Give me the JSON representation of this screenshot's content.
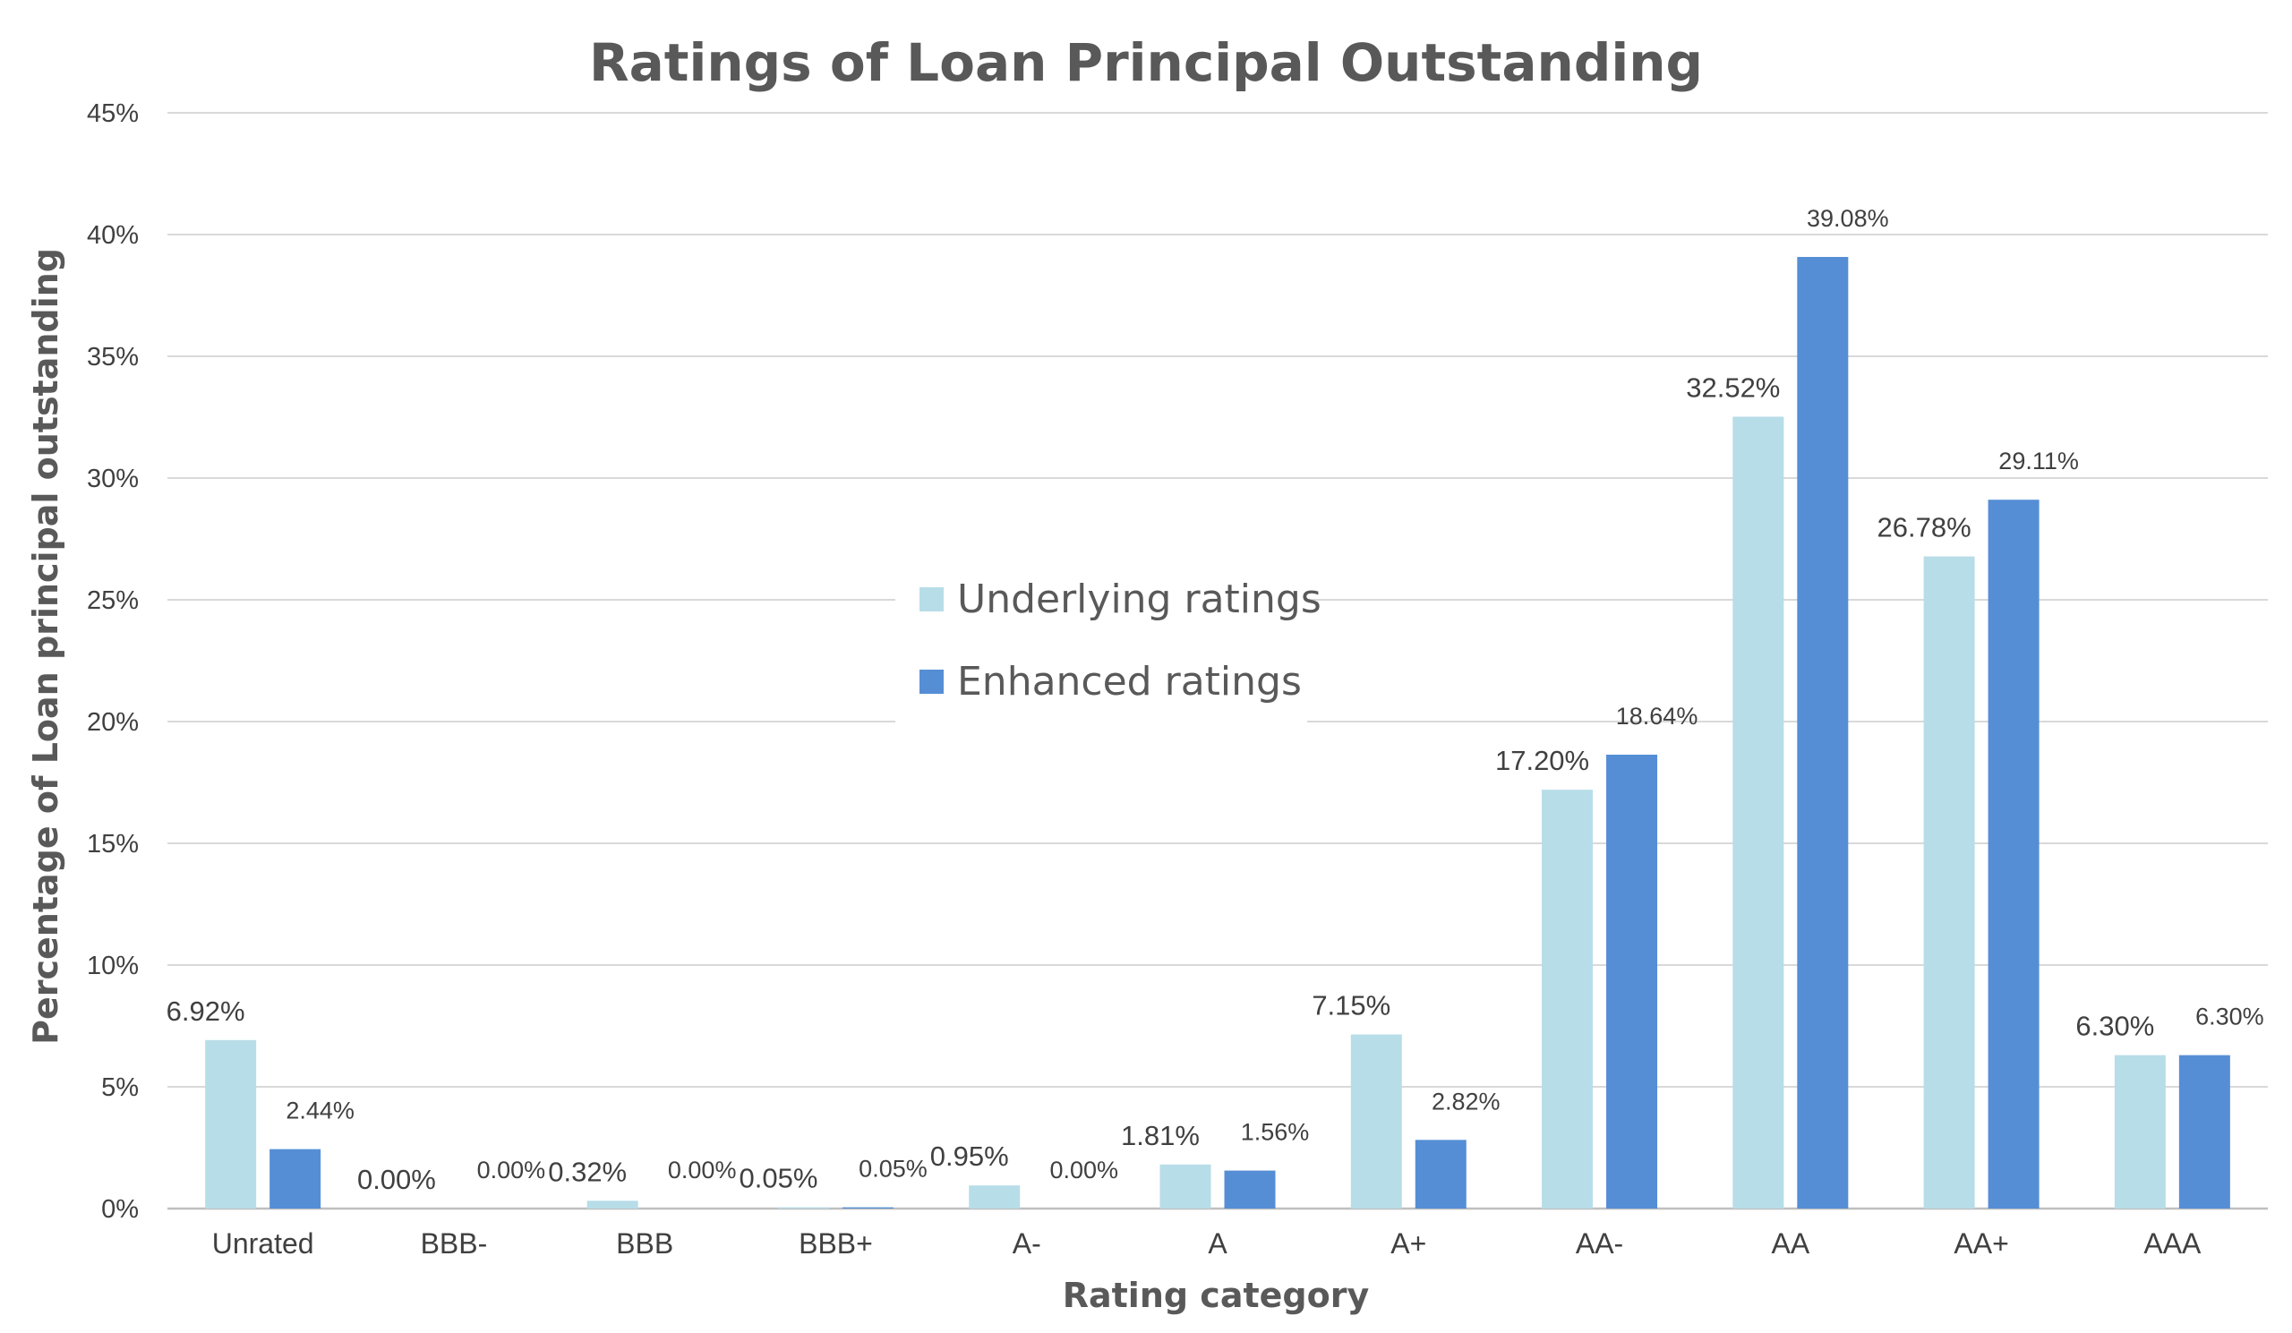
{
  "chart_data": {
    "type": "bar",
    "title": "Ratings of Loan Principal Outstanding",
    "xlabel": "Rating category",
    "ylabel": "Percentage of Loan principal outstanding",
    "categories": [
      "Unrated",
      "BBB-",
      "BBB",
      "BBB+",
      "A-",
      "A",
      "A+",
      "AA-",
      "AA",
      "AA+",
      "AAA"
    ],
    "series": [
      {
        "name": "Underlying ratings",
        "color": "#b7dde8",
        "values": [
          6.92,
          0.0,
          0.32,
          0.05,
          0.95,
          1.81,
          7.15,
          17.2,
          32.52,
          26.78,
          6.3
        ],
        "labels": [
          "6.92%",
          "0.00%",
          "0.32%",
          "0.05%",
          "0.95%",
          "1.81%",
          "7.15%",
          "17.20%",
          "32.52%",
          "26.78%",
          "6.30%"
        ]
      },
      {
        "name": "Enhanced ratings",
        "color": "#558ed5",
        "values": [
          2.44,
          0.0,
          0.0,
          0.05,
          0.0,
          1.56,
          2.82,
          18.64,
          39.08,
          29.11,
          6.3
        ],
        "labels": [
          "2.44%",
          "0.00%",
          "0.00%",
          "0.05%",
          "0.00%",
          "1.56%",
          "2.82%",
          "18.64%",
          "39.08%",
          "29.11%",
          "6.30%"
        ]
      }
    ],
    "yticks": [
      0,
      5,
      10,
      15,
      20,
      25,
      30,
      35,
      40,
      45
    ],
    "ytick_labels": [
      "0%",
      "5%",
      "10%",
      "15%",
      "20%",
      "25%",
      "30%",
      "35%",
      "40%",
      "45%"
    ],
    "ylim": [
      0,
      45
    ],
    "grid": true,
    "legend_position": "center"
  }
}
